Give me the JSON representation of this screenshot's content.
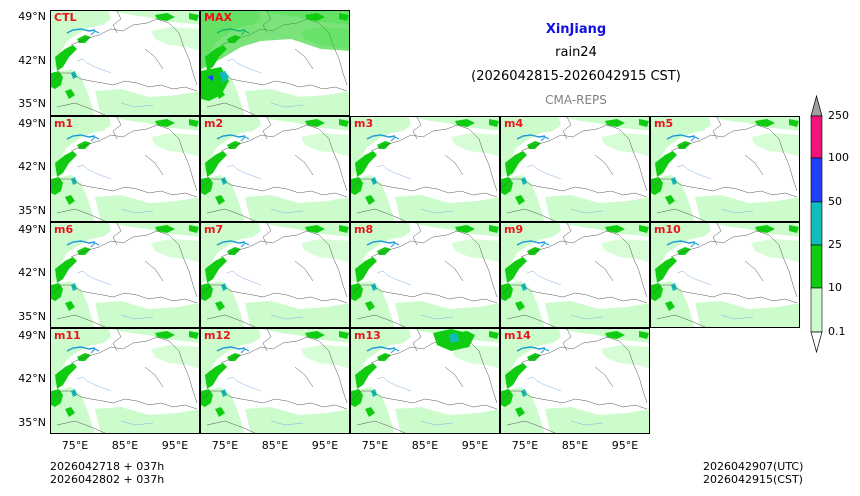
{
  "header": {
    "region": "XinJiang",
    "variable": "rain24",
    "period": "(2026042815-2026042915 CST)",
    "system": "CMA-REPS"
  },
  "panels": {
    "ctl": "CTL",
    "max": "MAX",
    "m1": "m1",
    "m2": "m2",
    "m3": "m3",
    "m4": "m4",
    "m5": "m5",
    "m6": "m6",
    "m7": "m7",
    "m8": "m8",
    "m9": "m9",
    "m10": "m10",
    "m11": "m11",
    "m12": "m12",
    "m13": "m13",
    "m14": "m14"
  },
  "axes": {
    "lat": [
      "49°N",
      "42°N",
      "35°N"
    ],
    "lon": [
      "75°E",
      "85°E",
      "95°E"
    ]
  },
  "colorbar": {
    "levels": [
      "0.1",
      "10",
      "25",
      "50",
      "100",
      "250"
    ],
    "colors": [
      "#ccfccc",
      "#10cc10",
      "#10bcbc",
      "#2040fc",
      "#f0147a"
    ]
  },
  "footer": {
    "init_utc": "2026042718  +  037h",
    "init_cst": "2026042802  +  037h",
    "valid_utc": "2026042907(UTC)",
    "valid_cst": "2026042915(CST)"
  }
}
